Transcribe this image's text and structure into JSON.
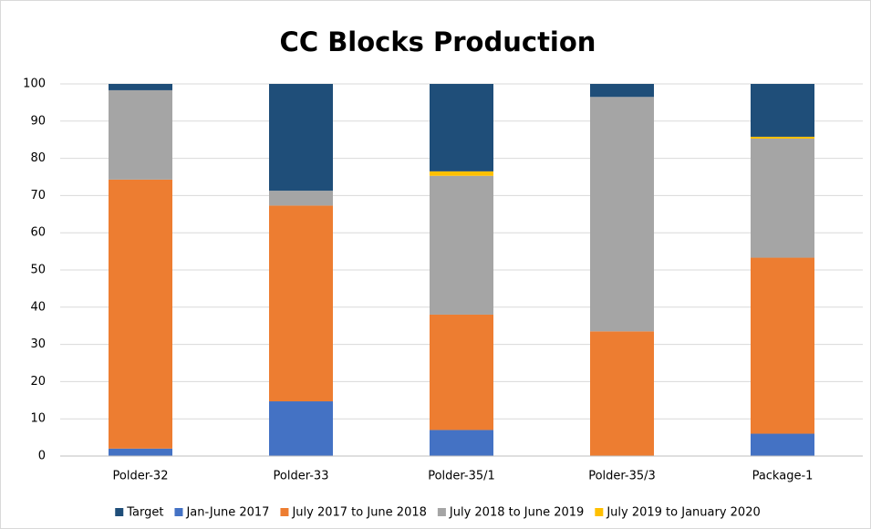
{
  "chart_data": {
    "type": "stacked_bar",
    "title": "CC Blocks Production",
    "categories": [
      "Polder-32",
      "Polder-33",
      "Polder-35/1",
      "Polder-35/3",
      "Package-1"
    ],
    "series": [
      {
        "name": "Target",
        "color": "#1f4e79",
        "values": [
          1.7,
          28.7,
          23.5,
          3.5,
          14.2
        ]
      },
      {
        "name": "Jan-June 2017",
        "color": "#4472c4",
        "values": [
          2,
          14.7,
          7,
          0,
          6
        ]
      },
      {
        "name": "July 2017 to June 2018",
        "color": "#ed7d31",
        "values": [
          72.3,
          52.6,
          31,
          33.5,
          47.3
        ]
      },
      {
        "name": "July 2018 to June 2019",
        "color": "#a5a5a5",
        "values": [
          24,
          4,
          37.3,
          63,
          32
        ]
      },
      {
        "name": "July 2019 to January 2020",
        "color": "#ffc000",
        "values": [
          0,
          0,
          1.2,
          0,
          0.5
        ]
      }
    ],
    "ylim": [
      0,
      100
    ],
    "yticks": [
      0,
      10,
      20,
      30,
      40,
      50,
      60,
      70,
      80,
      90,
      100
    ],
    "grid": true,
    "legend": "bottom"
  }
}
